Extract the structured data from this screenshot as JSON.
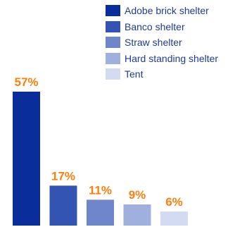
{
  "chart_data": {
    "type": "bar",
    "categories": [
      "Adobe brick shelter",
      "Banco shelter",
      "Straw shelter",
      "Hard standing shelter",
      "Tent"
    ],
    "values": [
      57,
      17,
      11,
      9,
      6
    ],
    "value_labels": [
      "57%",
      "17%",
      "11%",
      "9%",
      "6%"
    ],
    "colors": [
      "#0a2d9c",
      "#3354b3",
      "#6f86ca",
      "#a0b0de",
      "#d2dbf1"
    ],
    "label_color": "#ff7f0e",
    "ylim": [
      0,
      60
    ],
    "legend": "top-right",
    "grid": false
  }
}
